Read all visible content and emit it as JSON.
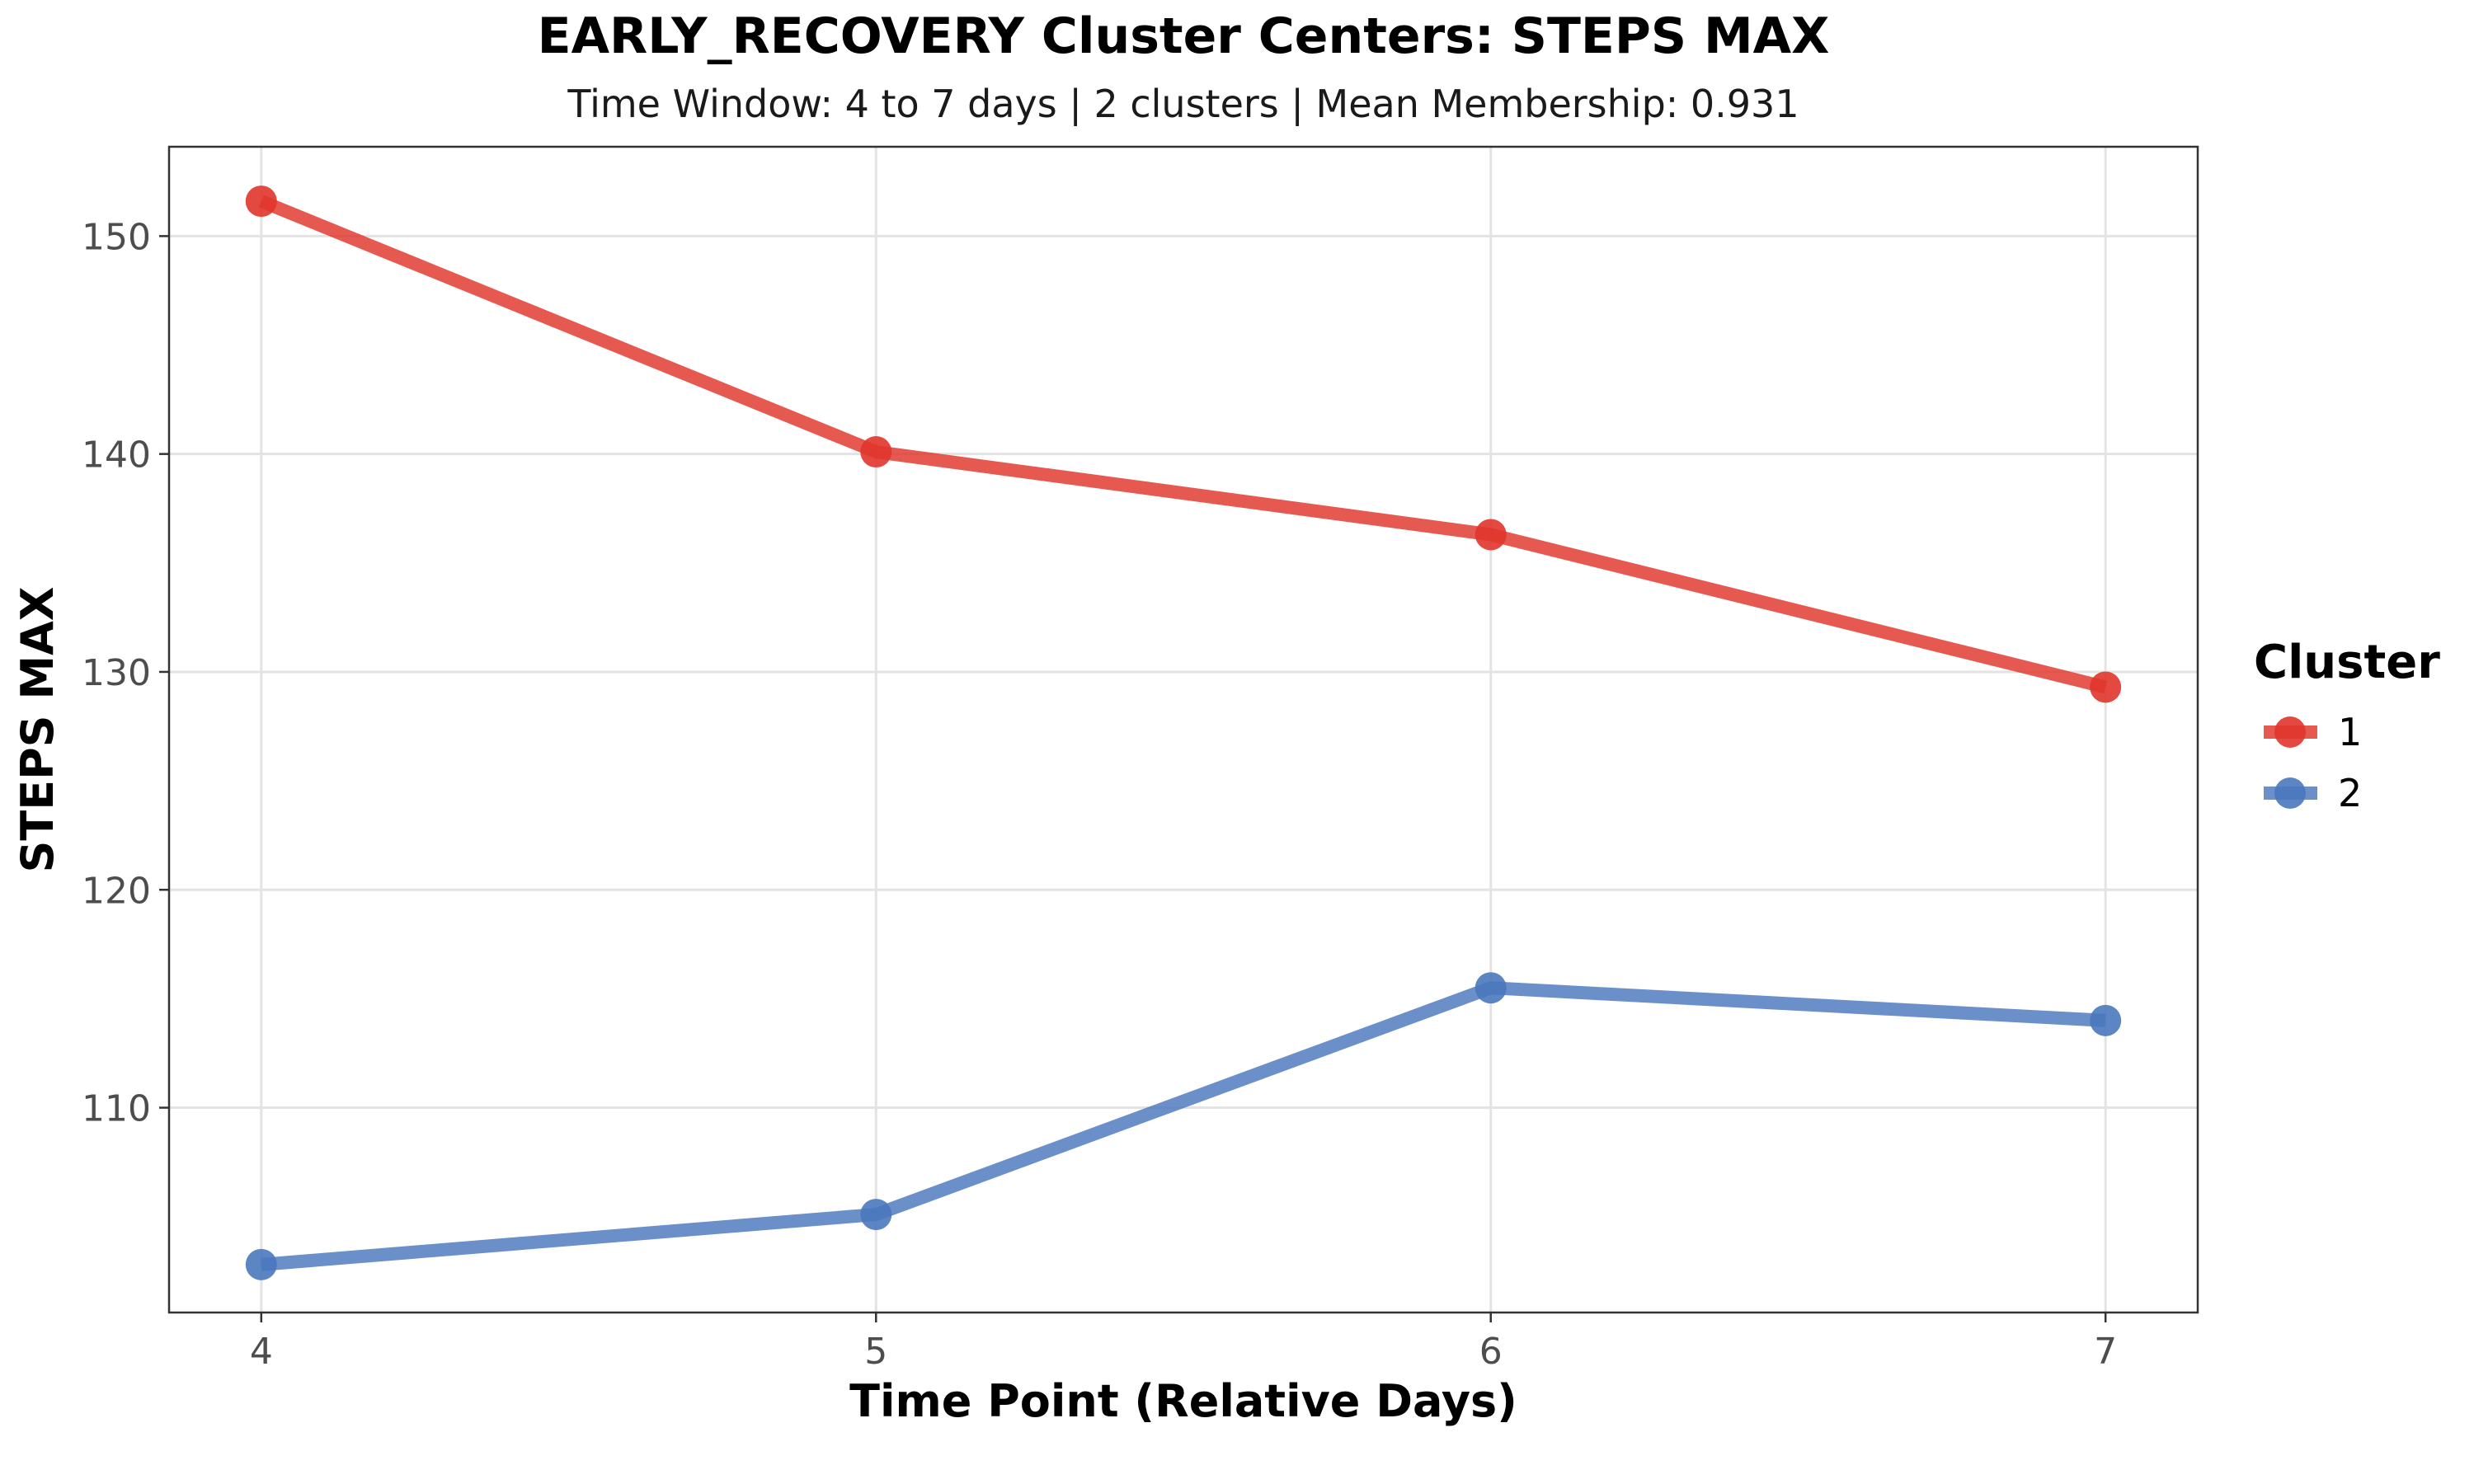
{
  "chart_data": {
    "type": "line",
    "title": "EARLY_RECOVERY Cluster Centers: STEPS MAX",
    "subtitle": "Time Window: 4 to 7 days | 2 clusters | Mean Membership: 0.931",
    "xlabel": "Time Point (Relative Days)",
    "ylabel": "STEPS MAX",
    "x": [
      4,
      5,
      6,
      7
    ],
    "xticks": [
      "4",
      "5",
      "6",
      "7"
    ],
    "xlim": [
      3.85,
      7.15
    ],
    "yticks": [
      "110",
      "120",
      "130",
      "140",
      "150"
    ],
    "ylim": [
      100.6,
      154.1
    ],
    "grid": true,
    "legend": {
      "title": "Cluster",
      "position": "right"
    },
    "series": [
      {
        "name": "1",
        "color": "#e0352b",
        "values": [
          151.6,
          140.1,
          136.3,
          129.3
        ]
      },
      {
        "name": "2",
        "color": "#4a78bd",
        "values": [
          102.8,
          105.1,
          115.5,
          114.0
        ]
      }
    ]
  }
}
